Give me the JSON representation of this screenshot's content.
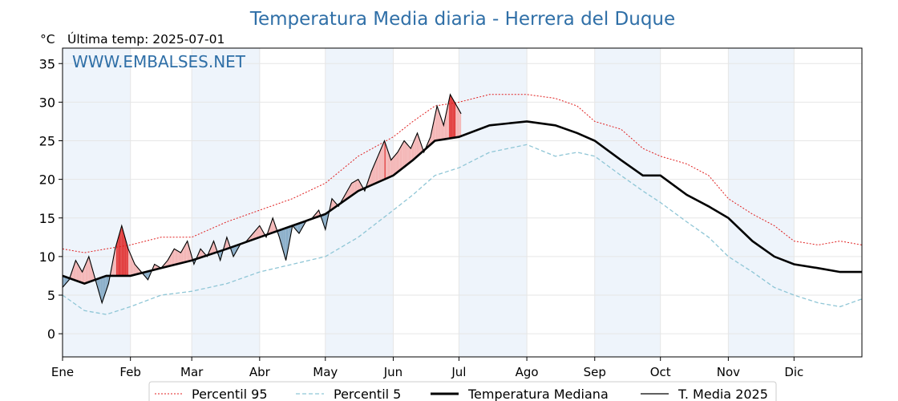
{
  "title": "Temperatura Media diaria - Herrera del Duque",
  "unit_label": "°C",
  "last_temp_label": "Última temp: 2025-07-01",
  "watermark": "WWW.EMBALSES.NET",
  "colors": {
    "title": "#2f6fa7",
    "p95": "#e02020",
    "p5": "#8fc6d6",
    "median": "#000000",
    "t2025": "#000000",
    "fill_above": "#f4b6b6",
    "fill_above_strong": "#e23b3b",
    "fill_below": "#8aaec9",
    "band": "#eef4fb"
  },
  "legend": {
    "p95": "Percentil 95",
    "p5": "Percentil 5",
    "median": "Temperatura Mediana",
    "t2025": "T. Media 2025"
  },
  "chart_data": {
    "type": "line",
    "title": "Temperatura Media diaria - Herrera del Duque",
    "ylabel": "°C",
    "ylim": [
      -3,
      37
    ],
    "xlim": [
      0,
      365
    ],
    "yticks": [
      0,
      5,
      10,
      15,
      20,
      25,
      30,
      35
    ],
    "months": [
      {
        "label": "Ene",
        "day": 0
      },
      {
        "label": "Feb",
        "day": 31
      },
      {
        "label": "Mar",
        "day": 59
      },
      {
        "label": "Abr",
        "day": 90
      },
      {
        "label": "May",
        "day": 120
      },
      {
        "label": "Jun",
        "day": 151
      },
      {
        "label": "Jul",
        "day": 181
      },
      {
        "label": "Ago",
        "day": 212
      },
      {
        "label": "Sep",
        "day": 243
      },
      {
        "label": "Oct",
        "day": 273
      },
      {
        "label": "Nov",
        "day": 304
      },
      {
        "label": "Dic",
        "day": 334
      }
    ],
    "grid": true,
    "legend_position": "bottom",
    "series": [
      {
        "name": "Percentil 95",
        "x": [
          0,
          10,
          20,
          31,
          45,
          59,
          75,
          90,
          105,
          120,
          135,
          151,
          160,
          170,
          181,
          195,
          212,
          225,
          235,
          243,
          255,
          265,
          273,
          285,
          295,
          304,
          315,
          325,
          334,
          345,
          355,
          365
        ],
        "y": [
          11,
          10.5,
          11,
          11.5,
          12.5,
          12.5,
          14.5,
          16,
          17.5,
          19.5,
          23,
          25.5,
          27.5,
          29.5,
          30,
          31,
          31,
          30.5,
          29.5,
          27.5,
          26.5,
          24,
          23,
          22,
          20.5,
          17.5,
          15.5,
          14,
          12,
          11.5,
          12,
          11.5
        ]
      },
      {
        "name": "Percentil 5",
        "x": [
          0,
          10,
          20,
          31,
          45,
          59,
          75,
          90,
          105,
          120,
          135,
          151,
          160,
          170,
          181,
          195,
          212,
          225,
          235,
          243,
          255,
          265,
          273,
          285,
          295,
          304,
          315,
          325,
          334,
          345,
          355,
          365
        ],
        "y": [
          5,
          3,
          2.5,
          3.5,
          5,
          5.5,
          6.5,
          8,
          9,
          10,
          12.5,
          16,
          18,
          20.5,
          21.5,
          23.5,
          24.5,
          23,
          23.5,
          23,
          20.5,
          18.5,
          17,
          14.5,
          12.5,
          10,
          8,
          6,
          5,
          4,
          3.5,
          4.5
        ]
      },
      {
        "name": "Temperatura Mediana",
        "x": [
          0,
          10,
          20,
          31,
          45,
          59,
          75,
          90,
          105,
          120,
          135,
          151,
          160,
          170,
          181,
          195,
          212,
          225,
          235,
          243,
          255,
          265,
          273,
          285,
          295,
          304,
          315,
          325,
          334,
          345,
          355,
          365
        ],
        "y": [
          7.5,
          6.5,
          7.5,
          7.5,
          8.5,
          9.5,
          11,
          12.5,
          14,
          15.5,
          18.5,
          20.5,
          22.5,
          25,
          25.5,
          27,
          27.5,
          27,
          26,
          25,
          22.5,
          20.5,
          20.5,
          18,
          16.5,
          15,
          12,
          10,
          9,
          8.5,
          8,
          8
        ]
      },
      {
        "name": "T. Media 2025",
        "x": [
          0,
          3,
          6,
          9,
          12,
          15,
          18,
          21,
          24,
          27,
          30,
          33,
          36,
          39,
          42,
          45,
          48,
          51,
          54,
          57,
          60,
          63,
          66,
          69,
          72,
          75,
          78,
          81,
          84,
          87,
          90,
          93,
          96,
          99,
          102,
          105,
          108,
          111,
          114,
          117,
          120,
          123,
          126,
          129,
          132,
          135,
          138,
          141,
          144,
          147,
          150,
          153,
          156,
          159,
          162,
          165,
          168,
          171,
          174,
          177,
          180,
          182
        ],
        "y": [
          6,
          7,
          9.5,
          8,
          10,
          7,
          4,
          6.5,
          11,
          14,
          11,
          9,
          8,
          7,
          9,
          8.5,
          9.5,
          11,
          10.5,
          12,
          9,
          11,
          10,
          12,
          9.5,
          12.5,
          10,
          11.5,
          12,
          13,
          14,
          12.5,
          15,
          12.5,
          9.5,
          14,
          13,
          14.5,
          15,
          16,
          13.5,
          17.5,
          16.5,
          18,
          19.5,
          20,
          18.5,
          21,
          23,
          25,
          22.5,
          23.5,
          25,
          24,
          26,
          23.5,
          25.5,
          29.5,
          27,
          31,
          29.5,
          28.5
        ]
      }
    ]
  }
}
